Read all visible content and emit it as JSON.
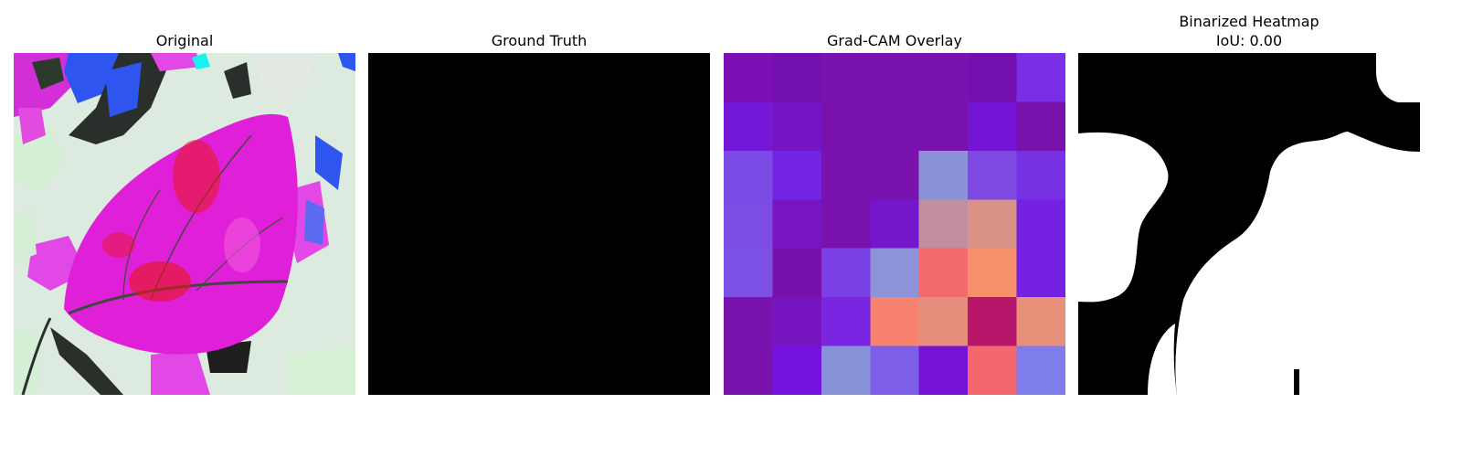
{
  "panels": [
    {
      "title": "Original"
    },
    {
      "title": "Ground Truth"
    },
    {
      "title": "Grad-CAM Overlay"
    },
    {
      "title": "Binarized Heatmap",
      "subtitle": "IoU: 0.00"
    }
  ],
  "colors": {
    "background": "#ffffff",
    "ground_truth_fill": "#000000",
    "mask_foreground": "#ffffff",
    "mask_background": "#000000"
  },
  "gradcam": {
    "rows": 7,
    "cols": 7,
    "cells": [
      [
        "#7a10b5",
        "#7510b0",
        "#7a12ae",
        "#7a12ae",
        "#7a12ae",
        "#7510b0",
        "#7a2ee6"
      ],
      [
        "#7418d8",
        "#7514c4",
        "#7912ad",
        "#7912ad",
        "#7912ad",
        "#7414d4",
        "#7912ad"
      ],
      [
        "#7c4be6",
        "#7424e3",
        "#7a12ae",
        "#7a12ae",
        "#8a93d9",
        "#7e48e3",
        "#7632e2"
      ],
      [
        "#7d4ce5",
        "#7815c3",
        "#7912ad",
        "#7416cc",
        "#c08ea0",
        "#d89386",
        "#7421e1"
      ],
      [
        "#7c50e4",
        "#7612ab",
        "#7b41e5",
        "#8e93d9",
        "#f36a6c",
        "#f78f6d",
        "#7521e2"
      ],
      [
        "#7a12ae",
        "#7615c0",
        "#7925e2",
        "#f7826f",
        "#e68d7b",
        "#b8166b",
        "#e8907a"
      ],
      [
        "#7a12ae",
        "#7412e0",
        "#8892d8",
        "#7d5fe7",
        "#7514d6",
        "#f3676f",
        "#7e7deb"
      ]
    ]
  }
}
